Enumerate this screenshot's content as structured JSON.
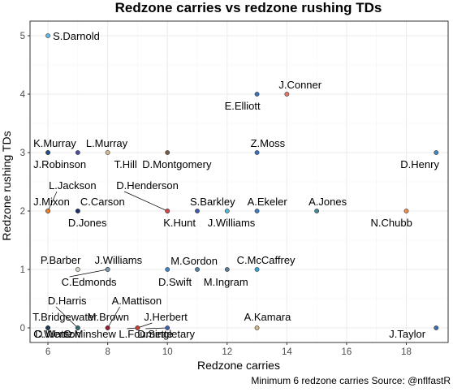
{
  "chart_data": {
    "type": "scatter",
    "title": "Redzone carries vs redzone rushing TDs",
    "xlabel": "Redzone carries",
    "ylabel": "Redzone rushing TDs",
    "caption": "Minimum 6 redzone carries Source: @nflfastR",
    "xlim": [
      5.4,
      19.4
    ],
    "ylim": [
      -0.25,
      5.25
    ],
    "xticks": [
      6,
      8,
      10,
      12,
      14,
      16,
      18
    ],
    "yticks": [
      0,
      1,
      2,
      3,
      4,
      5
    ],
    "grid": true,
    "points": [
      {
        "name": "S.Darnold",
        "x": 6,
        "y": 5,
        "color": "#63b8e3"
      },
      {
        "name": "J.Conner",
        "x": 14,
        "y": 4,
        "color": "#e5766e"
      },
      {
        "name": "E.Elliott",
        "x": 13,
        "y": 4,
        "color": "#3d71b8"
      },
      {
        "name": "K.Murray",
        "x": 6,
        "y": 3,
        "color": "#a2163a"
      },
      {
        "name": "L.Murray",
        "x": 7,
        "y": 3,
        "color": "#4b4fa3"
      },
      {
        "name": "J.Robinson",
        "x": 6,
        "y": 3,
        "color": "#1e4f8c"
      },
      {
        "name": "T.Hill",
        "x": 8,
        "y": 3,
        "color": "#d3bc8d"
      },
      {
        "name": "D.Montgomery",
        "x": 10,
        "y": 3,
        "color": "#7a5a45"
      },
      {
        "name": "Z.Moss",
        "x": 13,
        "y": 3,
        "color": "#3d6fc1"
      },
      {
        "name": "D.Henry",
        "x": 19,
        "y": 3,
        "color": "#4a85b8"
      },
      {
        "name": "L.Jackson",
        "x": 6,
        "y": 2,
        "color": "#3a2b82"
      },
      {
        "name": "D.Henderson",
        "x": 10,
        "y": 2,
        "color": "#ca3b2a"
      },
      {
        "name": "J.Mixon",
        "x": 6,
        "y": 2,
        "color": "#f07c27"
      },
      {
        "name": "C.Carson",
        "x": 7,
        "y": 2,
        "color": "#5c6c76"
      },
      {
        "name": "S.Barkley",
        "x": 11,
        "y": 2,
        "color": "#3c5aa6"
      },
      {
        "name": "A.Ekeler",
        "x": 13,
        "y": 2,
        "color": "#3c7fc2"
      },
      {
        "name": "A.Jones",
        "x": 15,
        "y": 2,
        "color": "#3f8a8f"
      },
      {
        "name": "D.Jones",
        "x": 7,
        "y": 2,
        "color": "#1c2e6e"
      },
      {
        "name": "K.Hunt",
        "x": 10,
        "y": 2,
        "color": "#d0464b"
      },
      {
        "name": "J.Williams",
        "x": 12,
        "y": 2,
        "color": "#4dbbd5"
      },
      {
        "name": "N.Chubb",
        "x": 18,
        "y": 2,
        "color": "#f28a4e"
      },
      {
        "name": "P.Barber",
        "x": 7,
        "y": 1,
        "color": "#d8d8c8"
      },
      {
        "name": "J.Williams",
        "x": 8,
        "y": 1,
        "color": "#3b72a7"
      },
      {
        "name": "M.Gordon",
        "x": 10,
        "y": 1,
        "color": "#3e86c5"
      },
      {
        "name": "C.McCaffrey",
        "x": 13,
        "y": 1,
        "color": "#2fa6dc"
      },
      {
        "name": "C.Edmonds",
        "x": 8,
        "y": 1,
        "color": "#7b9ab0"
      },
      {
        "name": "D.Swift",
        "x": 11,
        "y": 1,
        "color": "#5680a8"
      },
      {
        "name": "M.Ingram",
        "x": 12,
        "y": 1,
        "color": "#5f7d96"
      },
      {
        "name": "D.Harris",
        "x": 7,
        "y": 0,
        "color": "#b23a48"
      },
      {
        "name": "A.Mattison",
        "x": 8,
        "y": 0,
        "color": "#6b2f8a"
      },
      {
        "name": "T.Bridgewater",
        "x": 6,
        "y": 0,
        "color": "#1b2a4a"
      },
      {
        "name": "M.Brown",
        "x": 8,
        "y": 0,
        "color": "#9b1b30"
      },
      {
        "name": "J.Herbert",
        "x": 9,
        "y": 0,
        "color": "#3b7fc4"
      },
      {
        "name": "A.Kamara",
        "x": 13,
        "y": 0,
        "color": "#d3b88c"
      },
      {
        "name": "C.Wentz",
        "x": 6,
        "y": 0,
        "color": "#3a6ea5"
      },
      {
        "name": "D.Watson",
        "x": 6,
        "y": 0,
        "color": "#1f3b5a"
      },
      {
        "name": "G.Minshew",
        "x": 7,
        "y": 0,
        "color": "#2f6a6e"
      },
      {
        "name": "L.Fournette",
        "x": 9,
        "y": 0,
        "color": "#c93f32"
      },
      {
        "name": "D.Singletary",
        "x": 10,
        "y": 0,
        "color": "#3d5fa8"
      },
      {
        "name": "J.Taylor",
        "x": 19,
        "y": 0,
        "color": "#3e6ea6"
      }
    ]
  }
}
